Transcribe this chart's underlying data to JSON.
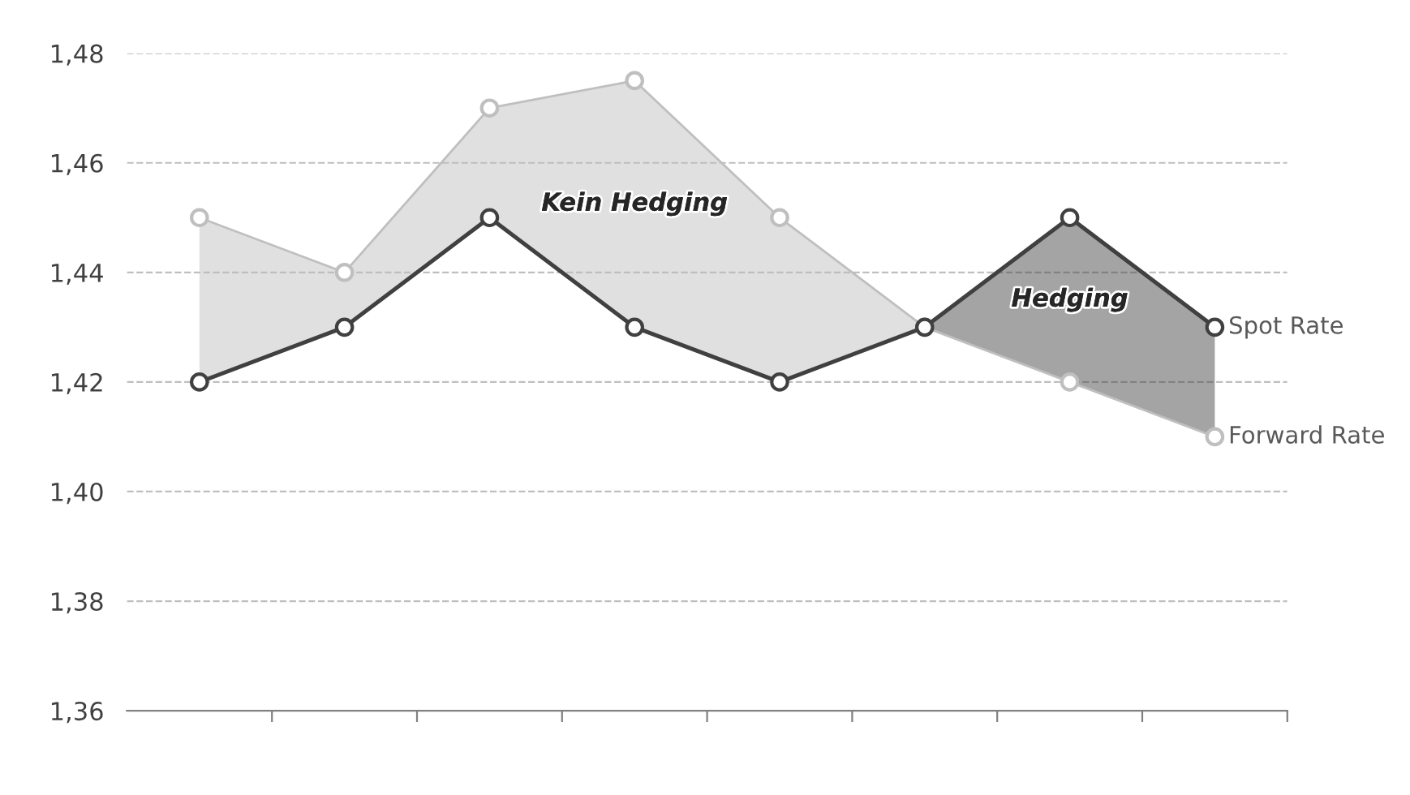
{
  "chart_data": {
    "type": "line",
    "categories": [
      null,
      null,
      null,
      null,
      null,
      null,
      null,
      null
    ],
    "series": [
      {
        "name": "Spot Rate",
        "color": "#404040",
        "values": [
          1.42,
          1.43,
          1.45,
          1.43,
          1.42,
          1.43,
          1.45,
          1.43
        ],
        "lower": [
          null,
          null,
          null,
          null,
          null,
          1.43,
          1.42,
          1.41
        ],
        "upper": [
          null,
          null,
          null,
          null,
          null,
          1.43,
          1.45,
          1.43
        ]
      },
      {
        "name": "Forward Rate",
        "color": "#bfbfbf",
        "values": [
          1.45,
          1.44,
          1.47,
          1.475,
          1.45,
          1.43,
          1.42,
          1.41
        ],
        "lower": [
          1.42,
          1.43,
          1.45,
          1.43,
          1.42,
          1.43,
          null,
          null
        ],
        "upper": [
          1.45,
          1.44,
          1.47,
          1.475,
          1.45,
          1.43,
          null,
          null
        ]
      }
    ],
    "annotations": [
      "Hedging",
      "Kein Hedging"
    ],
    "ylim": [
      1.36,
      1.48
    ],
    "yticks": [
      {
        "value": 1.36,
        "label": "1,36"
      },
      {
        "value": 1.38,
        "label": "1,38"
      },
      {
        "value": 1.4,
        "label": "1,40"
      },
      {
        "value": 1.42,
        "label": "1,42"
      },
      {
        "value": 1.44,
        "label": "1,44"
      },
      {
        "value": 1.46,
        "label": "1,46"
      },
      {
        "value": 1.48,
        "label": "1,48"
      }
    ],
    "grid": "y",
    "marker": "circle",
    "line_style": "solid"
  }
}
